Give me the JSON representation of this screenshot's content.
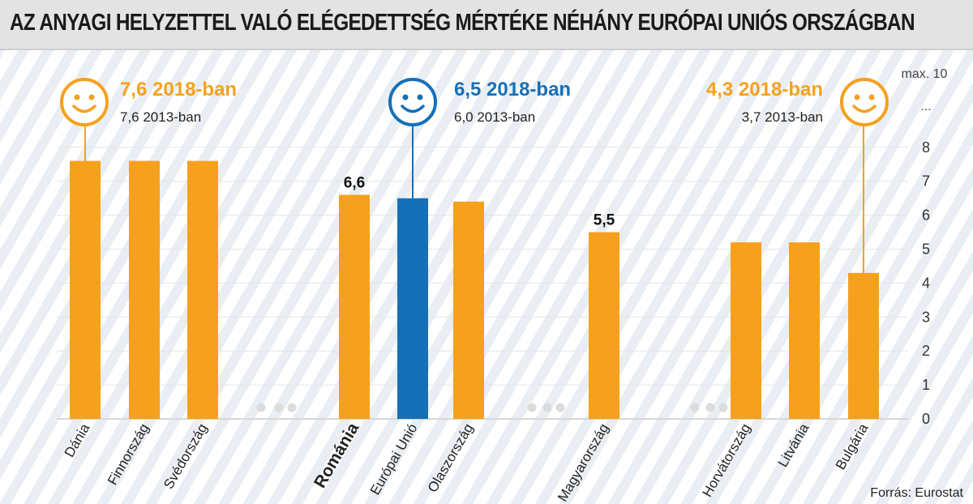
{
  "colors": {
    "orange": "#f5a11e",
    "blue": "#1570b8",
    "header_bg": "#e3e3e3",
    "dots": "#dcdcdc"
  },
  "header": {
    "title": "AZ ANYAGI HELYZETTEL VALÓ ELÉGEDETTSÉG MÉRTÉKE NÉHÁNY EURÓPAI UNIÓS ORSZÁGBAN"
  },
  "source": "Forrás: Eurostat",
  "chart_data": {
    "type": "bar",
    "title": "AZ ANYAGI HELYZETTEL VALÓ ELÉGEDETTSÉG MÉRTÉKE NÉHÁNY EURÓPAI UNIÓS ORSZÁGBAN",
    "xlabel": "",
    "ylabel": "",
    "ylim": [
      0,
      8
    ],
    "yticks": [
      "0",
      "1",
      "2",
      "3",
      "4",
      "5",
      "6",
      "7",
      "8"
    ],
    "axis_max_label": "max. 10",
    "axis_ellipsis": "...",
    "grid": true,
    "categories": [
      "Dánia",
      "Finnország",
      "Svédország",
      "Románia",
      "Európai Unió",
      "Olaszország",
      "Magyarország",
      "Horvátország",
      "Litvánia",
      "Bulgária"
    ],
    "values": [
      7.6,
      7.6,
      7.6,
      6.6,
      6.5,
      6.4,
      5.5,
      5.2,
      5.2,
      4.3
    ],
    "bar_colors": [
      "orange",
      "orange",
      "orange",
      "orange",
      "blue",
      "orange",
      "orange",
      "orange",
      "orange",
      "orange"
    ],
    "bold_categories": [
      "Románia"
    ],
    "data_labels": [
      {
        "category": "Románia",
        "text": "6,6"
      },
      {
        "category": "Magyarország",
        "text": "5,5"
      }
    ],
    "highlights": [
      {
        "category": "Dánia",
        "main": "7,6 2018-ban",
        "sub": "7,6 2013-ban",
        "color": "orange",
        "icon": "smiley-icon"
      },
      {
        "category": "Európai Unió",
        "main": "6,5 2018-ban",
        "sub": "6,0 2013-ban",
        "color": "blue",
        "icon": "smiley-icon"
      },
      {
        "category": "Bulgária",
        "main": "4,3 2018-ban",
        "sub": "3,7 2013-ban",
        "color": "orange",
        "icon": "smiley-icon"
      }
    ]
  }
}
